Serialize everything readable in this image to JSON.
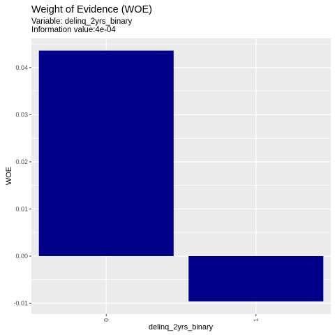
{
  "chart_data": {
    "type": "bar",
    "title": "Weight of Evidence (WOE)",
    "subtitle": "Variable: delinq_2yrs_binary",
    "subtitle2": "Information value:4e-04",
    "xlabel": "delinq_2yrs_binary",
    "ylabel": "WOE",
    "categories": [
      "0",
      "1"
    ],
    "values": [
      0.0436,
      -0.0096
    ],
    "ylim": [
      -0.0123,
      0.0462
    ],
    "yticks": [
      -0.01,
      0.0,
      0.01,
      0.02,
      0.03,
      0.04
    ],
    "ytick_labels": [
      "-0.01",
      "0.00",
      "0.01",
      "0.02",
      "0.03",
      "0.04"
    ],
    "bar_color": "#00008B",
    "panel_background": "#EBEBEB",
    "grid_color": "#FFFFFF",
    "grid": true,
    "legend": "none"
  }
}
